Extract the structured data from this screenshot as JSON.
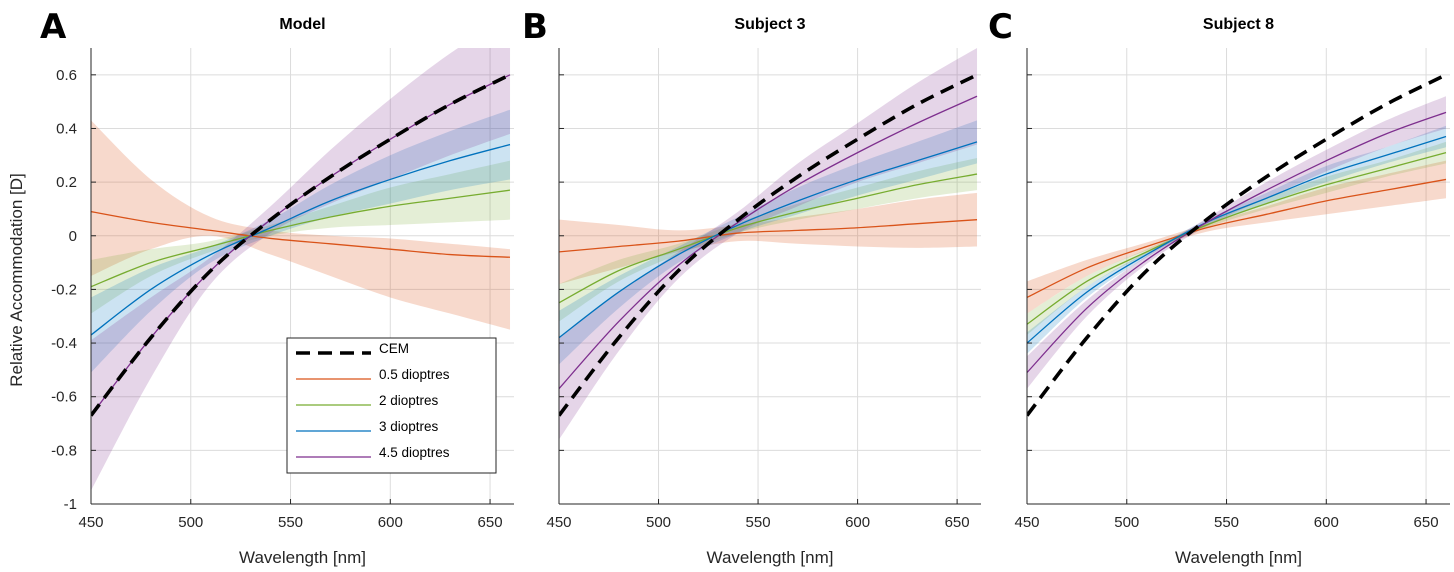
{
  "chart_data": [
    {
      "type": "line",
      "panel_letter": "A",
      "title": "Model",
      "xlabel": "Wavelength [nm]",
      "ylabel": "Relative Accommodation [D]",
      "xlim": [
        450,
        662
      ],
      "ylim": [
        -1.0,
        0.7
      ],
      "xticks": [
        450,
        500,
        550,
        600,
        650
      ],
      "yticks": [
        -1,
        -0.8,
        -0.6,
        -0.4,
        -0.2,
        0,
        0.2,
        0.4,
        0.6
      ],
      "ytick_labels": [
        "-1",
        "-0.8",
        "-0.6",
        "-0.4",
        "-0.2",
        "0",
        "0.2",
        "0.4",
        "0.6"
      ],
      "grid": true,
      "legend": "bottom-right",
      "x": [
        450,
        480,
        510,
        540,
        570,
        600,
        630,
        660
      ],
      "series": [
        {
          "name": "CEM",
          "color": "#000000",
          "dashed": true,
          "values": [
            -0.67,
            -0.38,
            -0.13,
            0.06,
            0.22,
            0.36,
            0.49,
            0.6
          ]
        },
        {
          "name": "0.5 dioptres",
          "color": "#d95319",
          "values": [
            0.09,
            0.05,
            0.02,
            -0.01,
            -0.03,
            -0.05,
            -0.07,
            -0.08
          ],
          "band": [
            0.34,
            0.16,
            0.05,
            0.03,
            0.03,
            0.04,
            0.04,
            0.03
          ],
          "band_lower": [
            0.24,
            0.1,
            0.02,
            0.06,
            0.12,
            0.18,
            0.22,
            0.27
          ]
        },
        {
          "name": "2 dioptres",
          "color": "#77ac30",
          "values": [
            -0.19,
            -0.1,
            -0.04,
            0.02,
            0.07,
            0.11,
            0.14,
            0.17
          ],
          "band": [
            0.1,
            0.05,
            0.02,
            0.02,
            0.04,
            0.07,
            0.09,
            0.11
          ],
          "band_lower": [
            0.1,
            0.05,
            0.02,
            0.02,
            0.04,
            0.07,
            0.09,
            0.11
          ]
        },
        {
          "name": "3 dioptres",
          "color": "#0072bd",
          "values": [
            -0.37,
            -0.2,
            -0.07,
            0.03,
            0.13,
            0.21,
            0.28,
            0.34
          ],
          "band": [
            0.14,
            0.08,
            0.03,
            0.03,
            0.06,
            0.09,
            0.11,
            0.13
          ],
          "band_lower": [
            0.14,
            0.08,
            0.03,
            0.03,
            0.06,
            0.09,
            0.11,
            0.13
          ]
        },
        {
          "name": "4.5 dioptres",
          "color": "#7e2f8e",
          "values": [
            -0.67,
            -0.38,
            -0.13,
            0.06,
            0.22,
            0.36,
            0.49,
            0.6
          ],
          "band": [
            0.28,
            0.15,
            0.05,
            0.05,
            0.1,
            0.15,
            0.19,
            0.22
          ],
          "band_lower": [
            0.28,
            0.15,
            0.05,
            0.05,
            0.1,
            0.15,
            0.19,
            0.22
          ]
        }
      ]
    },
    {
      "type": "line",
      "panel_letter": "B",
      "title": "Subject 3",
      "xlabel": "Wavelength [nm]",
      "ylabel": "",
      "xlim": [
        450,
        662
      ],
      "ylim": [
        -1.0,
        0.7
      ],
      "xticks": [
        450,
        500,
        550,
        600,
        650
      ],
      "yticks": [
        -1,
        -0.8,
        -0.6,
        -0.4,
        -0.2,
        0,
        0.2,
        0.4,
        0.6
      ],
      "ytick_labels": [],
      "grid": true,
      "x": [
        450,
        480,
        510,
        540,
        570,
        600,
        630,
        660
      ],
      "series": [
        {
          "name": "CEM",
          "color": "#000000",
          "dashed": true,
          "values": [
            -0.67,
            -0.38,
            -0.13,
            0.06,
            0.22,
            0.36,
            0.49,
            0.6
          ]
        },
        {
          "name": "0.5 dioptres",
          "color": "#d95319",
          "values": [
            -0.06,
            -0.04,
            -0.02,
            0.01,
            0.02,
            0.03,
            0.045,
            0.06
          ],
          "band": [
            0.12,
            0.08,
            0.04,
            0.03,
            0.05,
            0.07,
            0.09,
            0.1
          ],
          "band_lower": [
            0.12,
            0.08,
            0.04,
            0.03,
            0.05,
            0.07,
            0.09,
            0.1
          ]
        },
        {
          "name": "2 dioptres",
          "color": "#77ac30",
          "values": [
            -0.25,
            -0.13,
            -0.05,
            0.03,
            0.09,
            0.14,
            0.19,
            0.23
          ],
          "band": [
            0.07,
            0.04,
            0.02,
            0.02,
            0.03,
            0.04,
            0.05,
            0.06
          ],
          "band_lower": [
            0.07,
            0.04,
            0.02,
            0.02,
            0.03,
            0.04,
            0.05,
            0.06
          ]
        },
        {
          "name": "3 dioptres",
          "color": "#0072bd",
          "values": [
            -0.38,
            -0.21,
            -0.07,
            0.04,
            0.13,
            0.21,
            0.28,
            0.35
          ],
          "band": [
            0.1,
            0.06,
            0.03,
            0.03,
            0.05,
            0.06,
            0.07,
            0.08
          ],
          "band_lower": [
            0.1,
            0.06,
            0.03,
            0.03,
            0.05,
            0.06,
            0.07,
            0.08
          ]
        },
        {
          "name": "4.5 dioptres",
          "color": "#7e2f8e",
          "values": [
            -0.57,
            -0.32,
            -0.11,
            0.05,
            0.19,
            0.31,
            0.42,
            0.52
          ],
          "band": [
            0.19,
            0.11,
            0.05,
            0.04,
            0.08,
            0.11,
            0.15,
            0.18
          ],
          "band_lower": [
            0.19,
            0.11,
            0.05,
            0.04,
            0.08,
            0.11,
            0.15,
            0.18
          ]
        }
      ]
    },
    {
      "type": "line",
      "panel_letter": "C",
      "title": "Subject 8",
      "xlabel": "Wavelength [nm]",
      "ylabel": "",
      "xlim": [
        450,
        662
      ],
      "ylim": [
        -1.0,
        0.7
      ],
      "xticks": [
        450,
        500,
        550,
        600,
        650
      ],
      "yticks": [
        -1,
        -0.8,
        -0.6,
        -0.4,
        -0.2,
        0,
        0.2,
        0.4,
        0.6
      ],
      "ytick_labels": [],
      "grid": true,
      "x": [
        450,
        480,
        510,
        540,
        570,
        600,
        630,
        660
      ],
      "series": [
        {
          "name": "CEM",
          "color": "#000000",
          "dashed": true,
          "values": [
            -0.67,
            -0.38,
            -0.13,
            0.06,
            0.22,
            0.36,
            0.49,
            0.6
          ]
        },
        {
          "name": "0.5 dioptres",
          "color": "#d95319",
          "values": [
            -0.23,
            -0.12,
            -0.04,
            0.03,
            0.08,
            0.13,
            0.17,
            0.21
          ],
          "band": [
            0.06,
            0.03,
            0.015,
            0.015,
            0.03,
            0.05,
            0.06,
            0.07
          ],
          "band_lower": [
            0.06,
            0.03,
            0.015,
            0.015,
            0.03,
            0.05,
            0.06,
            0.07
          ]
        },
        {
          "name": "2 dioptres",
          "color": "#77ac30",
          "values": [
            -0.33,
            -0.17,
            -0.06,
            0.04,
            0.12,
            0.19,
            0.25,
            0.31
          ],
          "band": [
            0.04,
            0.02,
            0.01,
            0.01,
            0.02,
            0.03,
            0.03,
            0.04
          ],
          "band_lower": [
            0.04,
            0.02,
            0.01,
            0.01,
            0.02,
            0.03,
            0.03,
            0.04
          ]
        },
        {
          "name": "3 dioptres",
          "color": "#0072bd",
          "values": [
            -0.4,
            -0.21,
            -0.07,
            0.05,
            0.14,
            0.23,
            0.3,
            0.37
          ],
          "band": [
            0.04,
            0.02,
            0.01,
            0.01,
            0.02,
            0.03,
            0.03,
            0.04
          ],
          "band_lower": [
            0.04,
            0.02,
            0.01,
            0.01,
            0.02,
            0.03,
            0.03,
            0.04
          ]
        },
        {
          "name": "4.5 dioptres",
          "color": "#7e2f8e",
          "values": [
            -0.51,
            -0.27,
            -0.09,
            0.05,
            0.17,
            0.28,
            0.38,
            0.46
          ],
          "band": [
            0.06,
            0.03,
            0.015,
            0.015,
            0.03,
            0.04,
            0.05,
            0.06
          ],
          "band_lower": [
            0.06,
            0.03,
            0.015,
            0.015,
            0.03,
            0.04,
            0.05,
            0.06
          ]
        }
      ]
    }
  ]
}
